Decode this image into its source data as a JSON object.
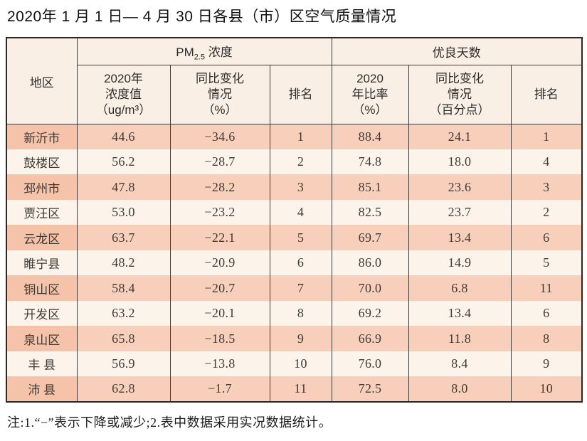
{
  "title": "2020年 1 月 1 日— 4 月 30 日各县（市）区空气质量情况",
  "note": "注:1.“−”表示下降或减少;2.表中数据采用实况数据统计。",
  "colors": {
    "row-salmon": "#f8cfbb",
    "row-light": "#fcf3ea",
    "region-salmon": "#f4c3aa",
    "header-bg": "#faefe4",
    "border": "#3e3a38",
    "outer-border": "#2a2724",
    "text": "#3f3a36"
  },
  "table": {
    "header": {
      "region": "地区",
      "pm_group": {
        "base": "PM",
        "sub": "2.5",
        "rest": " 浓度"
      },
      "good_group": "优良天数",
      "sub": {
        "pm_value": "2020年\n浓度值\n（ug/m³）",
        "pm_change": "同比变化\n情况\n（%）",
        "pm_rank": "排名",
        "good_ratio": "2020\n年比率\n（%）",
        "good_change": "同比变化\n情况\n（百分点）",
        "good_rank": "排名"
      }
    },
    "rows": [
      {
        "region": "新沂市",
        "pm_value": "44.6",
        "pm_change": "−34.6",
        "pm_rank": "1",
        "good_ratio": "88.4",
        "good_change": "24.1",
        "good_rank": "1"
      },
      {
        "region": "鼓楼区",
        "pm_value": "56.2",
        "pm_change": "−28.7",
        "pm_rank": "2",
        "good_ratio": "74.8",
        "good_change": "18.0",
        "good_rank": "4"
      },
      {
        "region": "邳州市",
        "pm_value": "47.8",
        "pm_change": "−28.2",
        "pm_rank": "3",
        "good_ratio": "85.1",
        "good_change": "23.6",
        "good_rank": "3"
      },
      {
        "region": "贾汪区",
        "pm_value": "53.0",
        "pm_change": "−23.2",
        "pm_rank": "4",
        "good_ratio": "82.5",
        "good_change": "23.7",
        "good_rank": "2"
      },
      {
        "region": "云龙区",
        "pm_value": "63.7",
        "pm_change": "−22.1",
        "pm_rank": "5",
        "good_ratio": "69.7",
        "good_change": "13.4",
        "good_rank": "6"
      },
      {
        "region": "睢宁县",
        "pm_value": "48.2",
        "pm_change": "−20.9",
        "pm_rank": "6",
        "good_ratio": "86.0",
        "good_change": "14.9",
        "good_rank": "5"
      },
      {
        "region": "铜山区",
        "pm_value": "58.4",
        "pm_change": "−20.7",
        "pm_rank": "7",
        "good_ratio": "70.0",
        "good_change": "6.8",
        "good_rank": "11"
      },
      {
        "region": "开发区",
        "pm_value": "63.2",
        "pm_change": "−20.1",
        "pm_rank": "8",
        "good_ratio": "69.2",
        "good_change": "13.4",
        "good_rank": "6"
      },
      {
        "region": "泉山区",
        "pm_value": "65.8",
        "pm_change": "−18.5",
        "pm_rank": "9",
        "good_ratio": "66.9",
        "good_change": "11.8",
        "good_rank": "8"
      },
      {
        "region": "丰 县",
        "pm_value": "56.9",
        "pm_change": "−13.8",
        "pm_rank": "10",
        "good_ratio": "76.0",
        "good_change": "8.4",
        "good_rank": "9"
      },
      {
        "region": "沛 县",
        "pm_value": "62.8",
        "pm_change": "−1.7",
        "pm_rank": "11",
        "good_ratio": "72.5",
        "good_change": "8.0",
        "good_rank": "10"
      }
    ]
  }
}
